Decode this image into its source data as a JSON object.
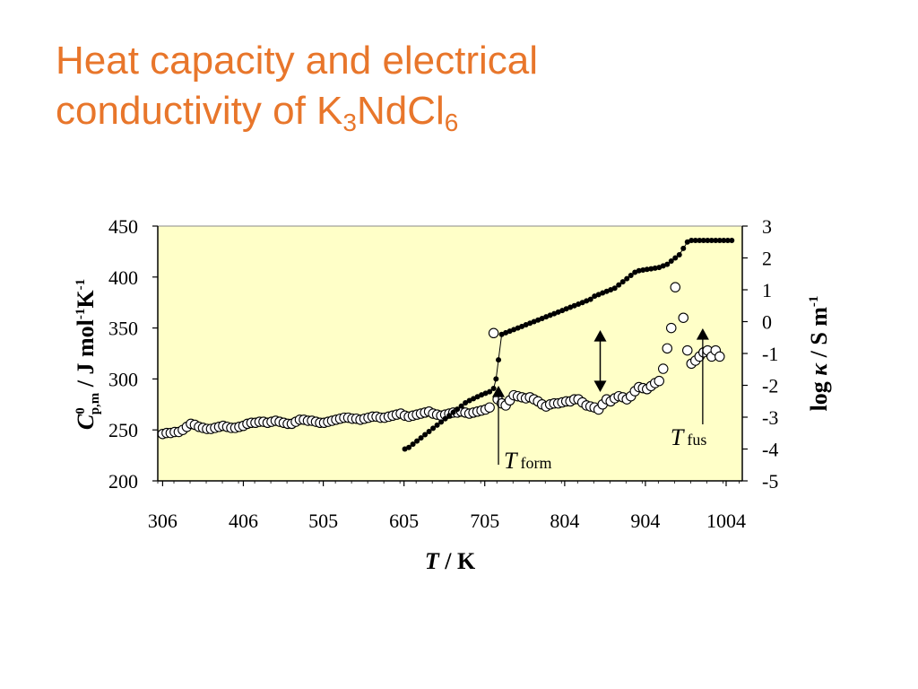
{
  "slide": {
    "title_line1": "Heat capacity and electrical",
    "title_line2_text": "conductivity of K",
    "title_sub1": "3",
    "title_mid": "NdCl",
    "title_sub2": "6"
  },
  "chart_data": {
    "type": "scatter",
    "x_axis": {
      "title_italic": "T",
      "title_rest": " / K",
      "range": [
        300,
        1024
      ],
      "ticks": [
        306,
        406,
        505,
        605,
        705,
        804,
        904,
        1004
      ]
    },
    "y_left": {
      "label_C": "C",
      "label_sup": "0",
      "label_sub": "p,m",
      "label_rest_a": " / J mol",
      "label_sup2": "-1",
      "label_rest_b": "K",
      "label_sup3": "-1",
      "range": [
        200,
        450
      ],
      "ticks": [
        200,
        250,
        300,
        350,
        400,
        450
      ]
    },
    "y_right": {
      "label_a": "log ",
      "label_kappa": "κ",
      "label_b": " / S m",
      "label_sup": "-1",
      "range": [
        -5,
        3
      ],
      "ticks": [
        3,
        2,
        1,
        0,
        -1,
        -2,
        -3,
        -4,
        -5
      ]
    },
    "plot_background": "#ffffc8",
    "series": [
      {
        "marker": "open-circle",
        "axis": "left",
        "points": [
          [
            306,
            246
          ],
          [
            311,
            247
          ],
          [
            316,
            247
          ],
          [
            321,
            248
          ],
          [
            326,
            248
          ],
          [
            331,
            250
          ],
          [
            336,
            253
          ],
          [
            341,
            256
          ],
          [
            346,
            255
          ],
          [
            351,
            253
          ],
          [
            356,
            252
          ],
          [
            361,
            251
          ],
          [
            366,
            251
          ],
          [
            371,
            252
          ],
          [
            376,
            253
          ],
          [
            381,
            254
          ],
          [
            386,
            253
          ],
          [
            391,
            252
          ],
          [
            396,
            252
          ],
          [
            401,
            253
          ],
          [
            406,
            254
          ],
          [
            411,
            256
          ],
          [
            416,
            257
          ],
          [
            421,
            257
          ],
          [
            426,
            258
          ],
          [
            431,
            258
          ],
          [
            436,
            257
          ],
          [
            441,
            258
          ],
          [
            446,
            259
          ],
          [
            451,
            258
          ],
          [
            456,
            257
          ],
          [
            461,
            256
          ],
          [
            466,
            256
          ],
          [
            471,
            258
          ],
          [
            476,
            260
          ],
          [
            481,
            260
          ],
          [
            486,
            259
          ],
          [
            491,
            259
          ],
          [
            496,
            258
          ],
          [
            501,
            257
          ],
          [
            506,
            257
          ],
          [
            511,
            258
          ],
          [
            516,
            259
          ],
          [
            521,
            260
          ],
          [
            526,
            261
          ],
          [
            531,
            262
          ],
          [
            536,
            262
          ],
          [
            541,
            261
          ],
          [
            546,
            261
          ],
          [
            551,
            260
          ],
          [
            556,
            261
          ],
          [
            561,
            262
          ],
          [
            566,
            263
          ],
          [
            571,
            263
          ],
          [
            576,
            262
          ],
          [
            581,
            262
          ],
          [
            586,
            263
          ],
          [
            591,
            264
          ],
          [
            596,
            265
          ],
          [
            601,
            266
          ],
          [
            606,
            264
          ],
          [
            611,
            263
          ],
          [
            616,
            264
          ],
          [
            621,
            265
          ],
          [
            626,
            266
          ],
          [
            631,
            267
          ],
          [
            636,
            268
          ],
          [
            641,
            266
          ],
          [
            646,
            265
          ],
          [
            651,
            264
          ],
          [
            656,
            265
          ],
          [
            661,
            266
          ],
          [
            666,
            267
          ],
          [
            671,
            267
          ],
          [
            676,
            268
          ],
          [
            681,
            267
          ],
          [
            686,
            266
          ],
          [
            691,
            267
          ],
          [
            696,
            268
          ],
          [
            701,
            269
          ],
          [
            706,
            270
          ],
          [
            711,
            272
          ],
          [
            716,
            345
          ],
          [
            721,
            280
          ],
          [
            726,
            276
          ],
          [
            731,
            274
          ],
          [
            736,
            279
          ],
          [
            741,
            284
          ],
          [
            746,
            283
          ],
          [
            751,
            282
          ],
          [
            756,
            281
          ],
          [
            761,
            282
          ],
          [
            766,
            280
          ],
          [
            771,
            278
          ],
          [
            776,
            275
          ],
          [
            781,
            273
          ],
          [
            786,
            275
          ],
          [
            791,
            276
          ],
          [
            796,
            276
          ],
          [
            801,
            277
          ],
          [
            806,
            278
          ],
          [
            811,
            278
          ],
          [
            816,
            280
          ],
          [
            821,
            280
          ],
          [
            826,
            277
          ],
          [
            831,
            274
          ],
          [
            836,
            273
          ],
          [
            841,
            272
          ],
          [
            846,
            270
          ],
          [
            851,
            275
          ],
          [
            856,
            280
          ],
          [
            861,
            278
          ],
          [
            866,
            281
          ],
          [
            871,
            283
          ],
          [
            876,
            282
          ],
          [
            881,
            280
          ],
          [
            886,
            283
          ],
          [
            891,
            288
          ],
          [
            896,
            292
          ],
          [
            901,
            291
          ],
          [
            906,
            290
          ],
          [
            911,
            293
          ],
          [
            916,
            296
          ],
          [
            921,
            298
          ],
          [
            926,
            310
          ],
          [
            931,
            330
          ],
          [
            936,
            350
          ],
          [
            941,
            390
          ],
          [
            951,
            360
          ],
          [
            956,
            328
          ],
          [
            961,
            315
          ],
          [
            966,
            318
          ],
          [
            971,
            322
          ],
          [
            976,
            326
          ],
          [
            981,
            328
          ],
          [
            986,
            322
          ],
          [
            991,
            328
          ],
          [
            996,
            322
          ]
        ]
      },
      {
        "marker": "filled-dot",
        "axis": "right",
        "points": [
          [
            606,
            -4
          ],
          [
            611,
            -3.95
          ],
          [
            616,
            -3.85
          ],
          [
            621,
            -3.75
          ],
          [
            626,
            -3.65
          ],
          [
            631,
            -3.55
          ],
          [
            636,
            -3.45
          ],
          [
            641,
            -3.35
          ],
          [
            646,
            -3.25
          ],
          [
            651,
            -3.15
          ],
          [
            656,
            -3.05
          ],
          [
            661,
            -2.95
          ],
          [
            666,
            -2.85
          ],
          [
            671,
            -2.75
          ],
          [
            676,
            -2.65
          ],
          [
            681,
            -2.55
          ],
          [
            686,
            -2.48
          ],
          [
            691,
            -2.42
          ],
          [
            696,
            -2.36
          ],
          [
            701,
            -2.3
          ],
          [
            706,
            -2.25
          ],
          [
            711,
            -2.2
          ],
          [
            716,
            -2.1
          ],
          [
            719,
            -1.8
          ],
          [
            722,
            -1.2
          ],
          [
            726,
            -0.4
          ],
          [
            731,
            -0.35
          ],
          [
            736,
            -0.3
          ],
          [
            741,
            -0.25
          ],
          [
            746,
            -0.2
          ],
          [
            751,
            -0.15
          ],
          [
            756,
            -0.1
          ],
          [
            761,
            -0.05
          ],
          [
            766,
            0
          ],
          [
            771,
            0.05
          ],
          [
            776,
            0.1
          ],
          [
            781,
            0.15
          ],
          [
            786,
            0.2
          ],
          [
            791,
            0.25
          ],
          [
            796,
            0.3
          ],
          [
            801,
            0.35
          ],
          [
            806,
            0.4
          ],
          [
            811,
            0.45
          ],
          [
            816,
            0.5
          ],
          [
            821,
            0.55
          ],
          [
            826,
            0.6
          ],
          [
            831,
            0.65
          ],
          [
            836,
            0.7
          ],
          [
            841,
            0.8
          ],
          [
            846,
            0.85
          ],
          [
            851,
            0.9
          ],
          [
            856,
            0.95
          ],
          [
            861,
            1.0
          ],
          [
            866,
            1.05
          ],
          [
            871,
            1.15
          ],
          [
            876,
            1.25
          ],
          [
            881,
            1.35
          ],
          [
            886,
            1.45
          ],
          [
            891,
            1.55
          ],
          [
            896,
            1.6
          ],
          [
            901,
            1.62
          ],
          [
            906,
            1.64
          ],
          [
            911,
            1.66
          ],
          [
            916,
            1.68
          ],
          [
            921,
            1.7
          ],
          [
            926,
            1.75
          ],
          [
            931,
            1.8
          ],
          [
            936,
            1.9
          ],
          [
            941,
            2.0
          ],
          [
            946,
            2.1
          ],
          [
            951,
            2.3
          ],
          [
            956,
            2.5
          ],
          [
            961,
            2.55
          ],
          [
            966,
            2.55
          ],
          [
            971,
            2.55
          ],
          [
            976,
            2.55
          ],
          [
            981,
            2.55
          ],
          [
            986,
            2.55
          ],
          [
            991,
            2.55
          ],
          [
            996,
            2.55
          ],
          [
            1001,
            2.55
          ],
          [
            1006,
            2.55
          ],
          [
            1011,
            2.55
          ]
        ]
      }
    ],
    "annotations": [
      {
        "label_italic": "T",
        "label_sub": "form",
        "x": 722,
        "arrow": "up"
      },
      {
        "label_italic": "T",
        "label_sub": "fus",
        "x": 975,
        "arrow": "up"
      },
      {
        "label": "",
        "x": 848,
        "arrow": "double"
      }
    ]
  }
}
